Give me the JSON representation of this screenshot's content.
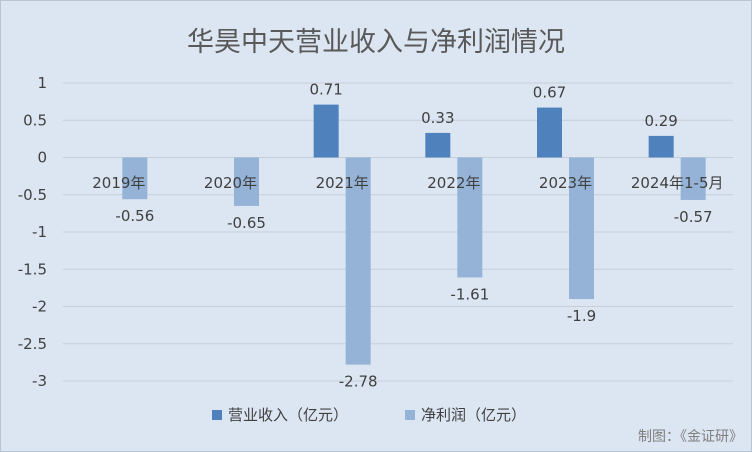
{
  "chart_data": {
    "type": "bar",
    "title": "华昊中天营业收入与净利润情况",
    "categories": [
      "2019年",
      "2020年",
      "2021年",
      "2022年",
      "2023年",
      "2024年1-5月"
    ],
    "series": [
      {
        "name": "营业收入（亿元）",
        "values": [
          null,
          null,
          0.71,
          0.33,
          0.67,
          0.29
        ],
        "labels": [
          "",
          "",
          "0.71",
          "0.33",
          "0.67",
          "0.29"
        ],
        "color": "#4f81bd"
      },
      {
        "name": "净利润（亿元）",
        "values": [
          -0.56,
          -0.65,
          -2.78,
          -1.61,
          -1.9,
          -0.57
        ],
        "labels": [
          "-0.56",
          "-0.65",
          "-2.78",
          "-1.61",
          "-1.9",
          "-0.57"
        ],
        "color": "#95b3d7"
      }
    ],
    "yticks": [
      "1",
      "0.5",
      "0",
      "-0.5",
      "-1",
      "-1.5",
      "-2",
      "-2.5",
      "-3"
    ],
    "ylim": [
      -3,
      1
    ],
    "grid": true,
    "legend_position": "bottom",
    "grid_color": "#c6ced8"
  },
  "credit": "制图：《金证研》"
}
